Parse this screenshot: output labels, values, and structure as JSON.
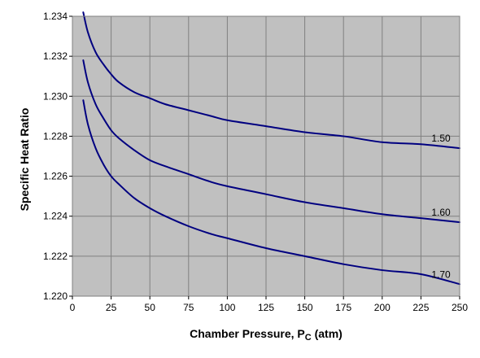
{
  "chart_data": {
    "type": "line",
    "xlabel": "Chamber Pressure, P",
    "xlabel_subscript": "C",
    "xlabel_unit": " (atm)",
    "ylabel": "Specific Heat Ratio",
    "xlim": [
      0,
      250
    ],
    "ylim": [
      1.22,
      1.234
    ],
    "x_ticks": [
      0,
      25,
      50,
      75,
      100,
      125,
      150,
      175,
      200,
      225,
      250
    ],
    "x_tick_labels": [
      "0",
      "25",
      "50",
      "75",
      "100",
      "125",
      "150",
      "175",
      "200",
      "225",
      "250"
    ],
    "y_ticks": [
      1.22,
      1.222,
      1.224,
      1.226,
      1.228,
      1.23,
      1.232,
      1.234
    ],
    "y_tick_labels": [
      "1.220",
      "1.222",
      "1.224",
      "1.226",
      "1.228",
      "1.230",
      "1.232",
      "1.234"
    ],
    "grid": true,
    "plot_background": "#c0c0c0",
    "grid_color": "#808080",
    "line_color": "#000080",
    "series": [
      {
        "name": "1.50",
        "x": [
          7,
          10,
          15,
          20,
          25,
          30,
          40,
          50,
          60,
          75,
          90,
          100,
          125,
          150,
          175,
          200,
          225,
          250
        ],
        "y": [
          1.2342,
          1.2332,
          1.2322,
          1.2316,
          1.2311,
          1.2307,
          1.2302,
          1.2299,
          1.2296,
          1.2293,
          1.229,
          1.2288,
          1.2285,
          1.2282,
          1.228,
          1.2277,
          1.2276,
          1.2274
        ]
      },
      {
        "name": "1.60",
        "x": [
          7,
          10,
          15,
          20,
          25,
          30,
          40,
          50,
          60,
          75,
          90,
          100,
          125,
          150,
          175,
          200,
          225,
          250
        ],
        "y": [
          1.2318,
          1.2307,
          1.2296,
          1.2289,
          1.2283,
          1.2279,
          1.2273,
          1.2268,
          1.2265,
          1.2261,
          1.2257,
          1.2255,
          1.2251,
          1.2247,
          1.2244,
          1.2241,
          1.2239,
          1.2237
        ]
      },
      {
        "name": "1.70",
        "x": [
          7,
          10,
          15,
          20,
          25,
          30,
          40,
          50,
          60,
          75,
          90,
          100,
          125,
          150,
          175,
          200,
          225,
          250
        ],
        "y": [
          1.2298,
          1.2286,
          1.2274,
          1.2266,
          1.226,
          1.2256,
          1.2249,
          1.2244,
          1.224,
          1.2235,
          1.2231,
          1.2229,
          1.2224,
          1.222,
          1.2216,
          1.2213,
          1.2211,
          1.2206
        ]
      }
    ]
  }
}
